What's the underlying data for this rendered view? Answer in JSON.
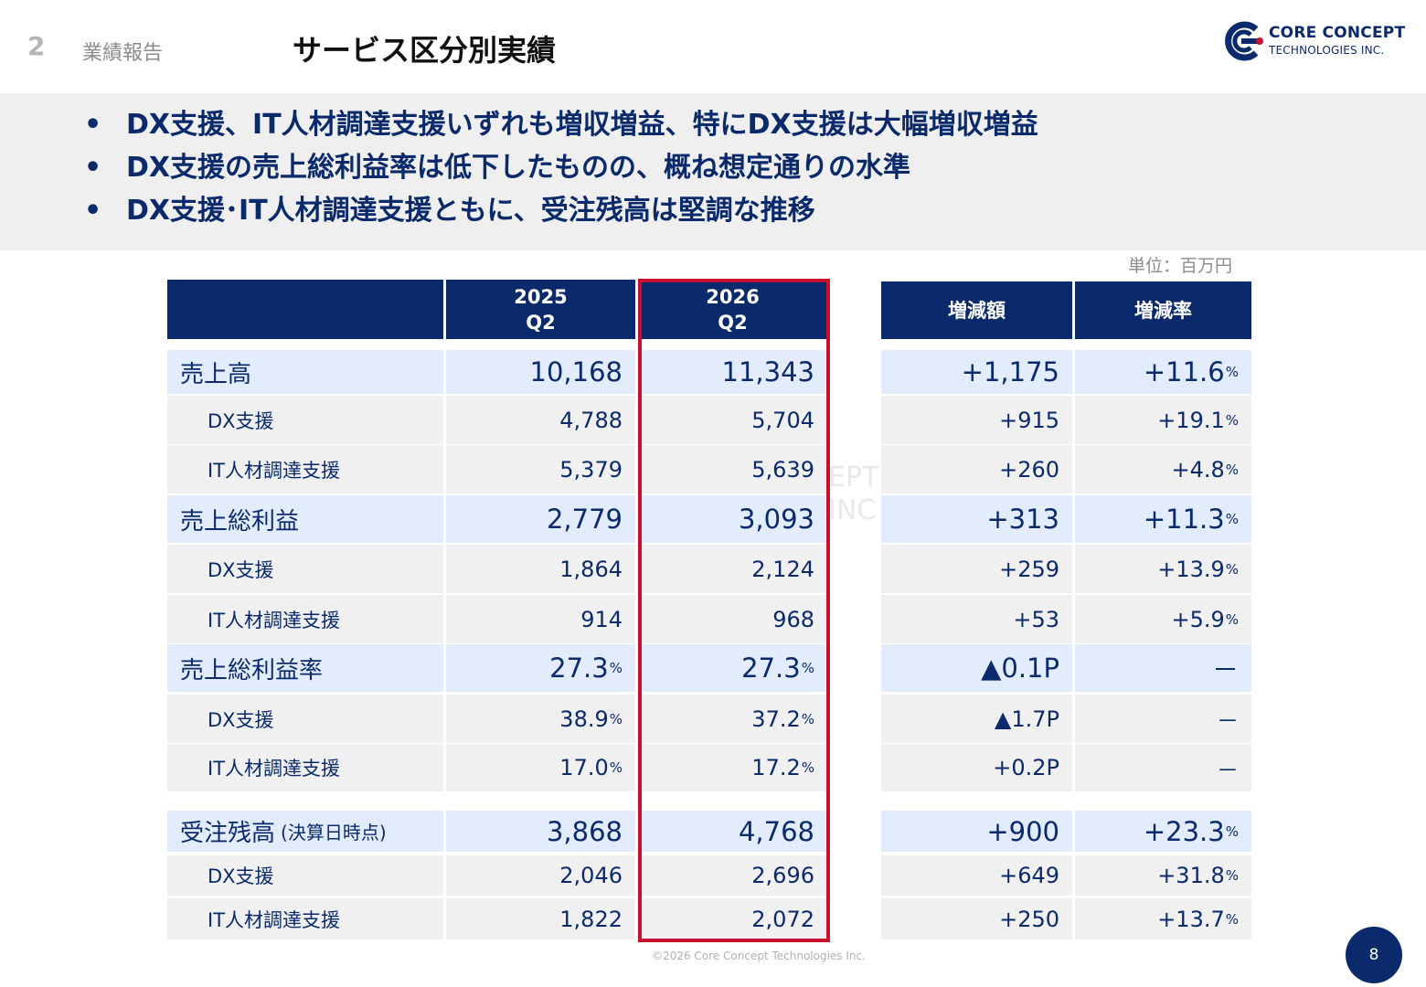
{
  "header": {
    "section_number": "2",
    "section_name": "業績報告",
    "title": "サービス区分別実績",
    "logo_line1": "CORE CONCEPT",
    "logo_line2": "TECHNOLOGIES INC."
  },
  "summary": {
    "bullet_symbol": "•",
    "bullets": [
      "DX支援、IT人材調達支援いずれも増収増益、特にDX支援は大幅増収増益",
      "DX支援の売上総利益率は低下したものの、概ね想定通りの水準",
      "DX支援･IT人材調達支援ともに、受注残高は堅調な推移"
    ]
  },
  "unit_label": "単位：百万円",
  "table": {
    "col_2025_line1": "2025",
    "col_2025_line2": "Q2",
    "col_2026_line1": "2026",
    "col_2026_line2": "Q2",
    "col_change": "増減額",
    "col_rate": "増減率",
    "pct_suffix": "%",
    "rows": [
      {
        "label": "売上高",
        "v2025": "10,168",
        "v2026": "11,343",
        "change": "+1,175",
        "rate": "+11.6"
      },
      {
        "label": "DX支援",
        "v2025": "4,788",
        "v2026": "5,704",
        "change": "+915",
        "rate": "+19.1"
      },
      {
        "label": "IT人材調達支援",
        "v2025": "5,379",
        "v2026": "5,639",
        "change": "+260",
        "rate": "+4.8"
      },
      {
        "label": "売上総利益",
        "v2025": "2,779",
        "v2026": "3,093",
        "change": "+313",
        "rate": "+11.3"
      },
      {
        "label": "DX支援",
        "v2025": "1,864",
        "v2026": "2,124",
        "change": "+259",
        "rate": "+13.9"
      },
      {
        "label": "IT人材調達支援",
        "v2025": "914",
        "v2026": "968",
        "change": "+53",
        "rate": "+5.9"
      },
      {
        "label": "売上総利益率",
        "v2025": "27.3",
        "v2026": "27.3",
        "change": "▲0.1P",
        "rate": "－"
      },
      {
        "label": "DX支援",
        "v2025": "38.9",
        "v2026": "37.2",
        "change": "▲1.7P",
        "rate": "－"
      },
      {
        "label": "IT人材調達支援",
        "v2025": "17.0",
        "v2026": "17.2",
        "change": "+0.2P",
        "rate": "－"
      },
      {
        "label": "受注残高",
        "label_note": "(決算日時点)",
        "v2025": "3,868",
        "v2026": "4,768",
        "change": "+900",
        "rate": "+23.3"
      },
      {
        "label": "DX支援",
        "v2025": "2,046",
        "v2026": "2,696",
        "change": "+649",
        "rate": "+31.8"
      },
      {
        "label": "IT人材調達支援",
        "v2025": "1,822",
        "v2026": "2,072",
        "change": "+250",
        "rate": "+13.7"
      }
    ]
  },
  "watermark": {
    "line1": "EPT",
    "line2": "INC"
  },
  "footer": {
    "copyright": "©2026 Core Concept Technologies Inc.",
    "page_number": "8"
  }
}
